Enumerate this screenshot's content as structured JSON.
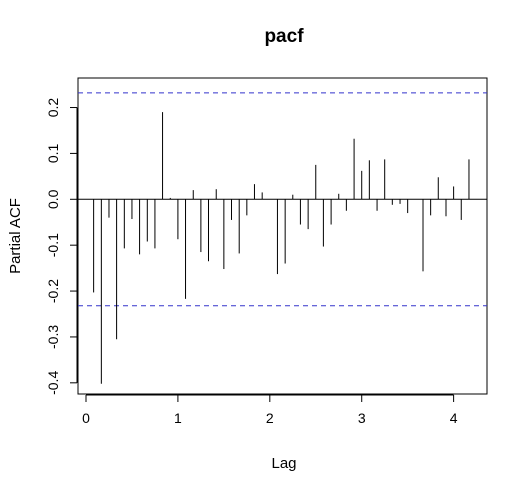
{
  "chart_data": {
    "type": "bar",
    "title": "pacf",
    "xlabel": "Lag",
    "ylabel": "Partial ACF",
    "xlim": [
      0,
      4.2
    ],
    "ylim": [
      -0.42,
      0.26
    ],
    "x_ticks": [
      0,
      1,
      2,
      3,
      4
    ],
    "y_ticks": [
      -0.4,
      -0.3,
      -0.2,
      -0.1,
      0.0,
      0.1,
      0.2
    ],
    "grid": false,
    "confidence_limits": [
      0.232,
      -0.232
    ],
    "confidence_line_color": "#3333cc",
    "bar_color": "#000000",
    "series": [
      {
        "lag": [
          0.083,
          0.167,
          0.25,
          0.333,
          0.417,
          0.5,
          0.583,
          0.667,
          0.75,
          0.833,
          0.917,
          1.0,
          1.083,
          1.167,
          1.25,
          1.333,
          1.417,
          1.5,
          1.583,
          1.667,
          1.75,
          1.833,
          1.917,
          2.0,
          2.083,
          2.167,
          2.25,
          2.333,
          2.417,
          2.5,
          2.583,
          2.667,
          2.75,
          2.833,
          2.917,
          3.0,
          3.083,
          3.167,
          3.25,
          3.333,
          3.417,
          3.5,
          3.583,
          3.667,
          3.75,
          3.833,
          3.917,
          4.0,
          4.083,
          4.167
        ],
        "values": [
          -0.203,
          -0.402,
          -0.04,
          -0.305,
          -0.107,
          -0.043,
          -0.12,
          -0.092,
          -0.107,
          0.19,
          0.003,
          -0.087,
          -0.217,
          0.02,
          -0.115,
          -0.135,
          0.022,
          -0.152,
          -0.045,
          -0.118,
          -0.035,
          0.033,
          0.015,
          0.0,
          -0.163,
          -0.14,
          0.01,
          -0.055,
          -0.065,
          0.075,
          -0.103,
          -0.055,
          0.012,
          -0.025,
          0.132,
          0.062,
          0.085,
          -0.025,
          0.087,
          -0.012,
          -0.01,
          -0.03,
          0.0,
          -0.157,
          -0.035,
          0.048,
          -0.037,
          0.028,
          -0.045,
          0.087
        ]
      }
    ]
  }
}
